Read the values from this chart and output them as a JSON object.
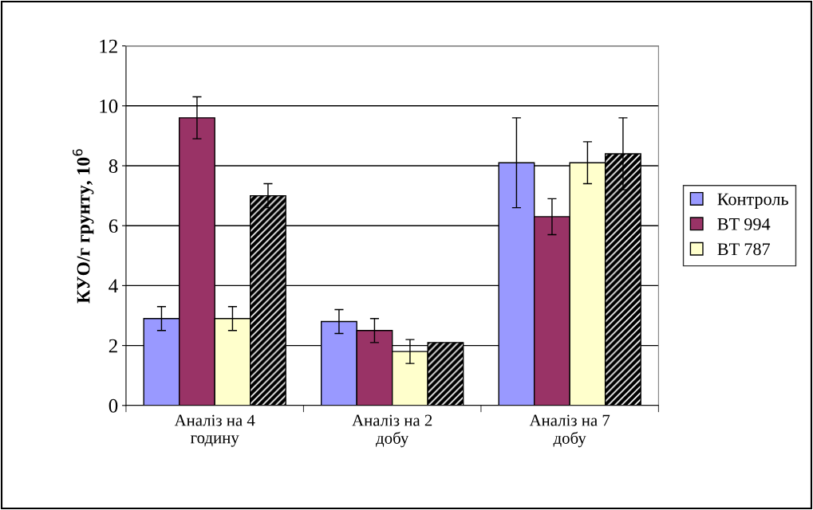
{
  "chart_data": {
    "type": "bar",
    "ylabel": "КУО/г грунту, 10$^{6}$",
    "categories": [
      "Аналіз на 4\nгодину",
      "Аналіз на 2\nдобу",
      "Аналіз на 7\nдобу"
    ],
    "series": [
      {
        "name": "Контроль",
        "color": "#9999ff",
        "values": [
          2.9,
          2.8,
          8.1
        ],
        "errors": [
          0.4,
          0.4,
          1.5
        ]
      },
      {
        "name": "BT 994",
        "color": "#993366",
        "values": [
          9.6,
          2.5,
          6.3
        ],
        "errors": [
          0.7,
          0.4,
          0.6
        ]
      },
      {
        "name": "BT 787",
        "color": "#ffffcc",
        "values": [
          2.9,
          1.8,
          8.1
        ],
        "errors": [
          0.4,
          0.4,
          0.7
        ]
      },
      {
        "color": "#000000",
        "values": [
          7.0,
          2.1,
          8.4
        ],
        "errors": [
          0.4,
          null,
          1.2
        ]
      }
    ],
    "ylim": [
      0,
      12
    ],
    "yticks": [
      0,
      2,
      4,
      6,
      8,
      10,
      12
    ],
    "grid": "y",
    "legend": "right"
  }
}
